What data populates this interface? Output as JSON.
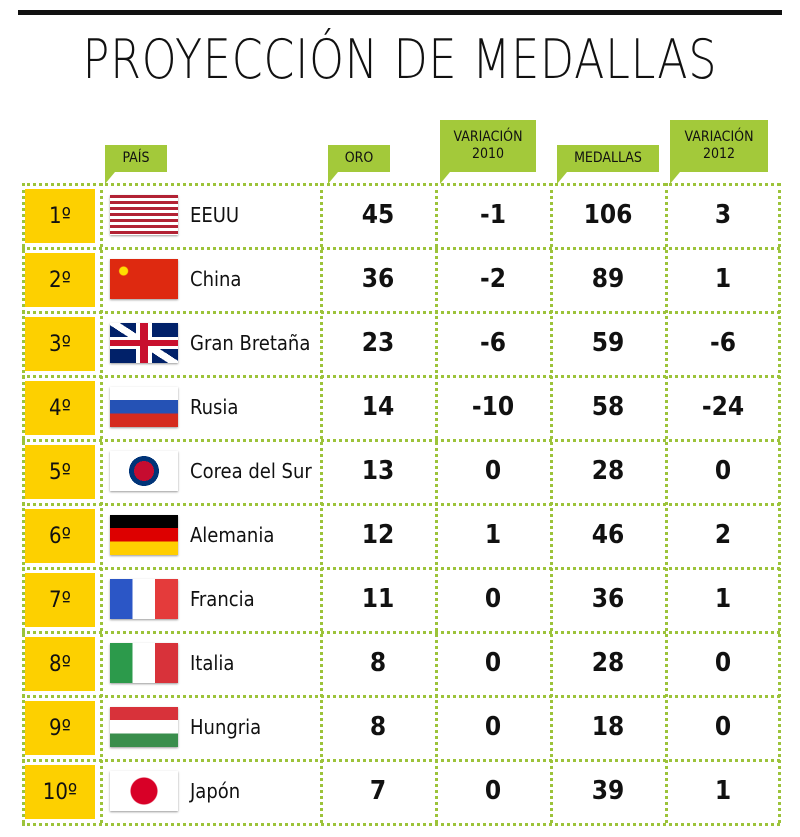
{
  "header": {
    "title": "PROYECCIÓN DE MEDALLAS"
  },
  "table": {
    "columns": [
      "PAÍS",
      "ORO",
      "VARIACIÓN 2010",
      "MEDALLAS",
      "VARIACIÓN 2012"
    ],
    "rows": [
      [
        "1º",
        "EEUU",
        45,
        -1,
        106,
        3
      ],
      [
        "2º",
        "China",
        36,
        -2,
        89,
        1
      ],
      [
        "3º",
        "Gran Bretaña",
        23,
        -6,
        59,
        -6
      ],
      [
        "4º",
        "Rusia",
        14,
        -10,
        58,
        -24
      ],
      [
        "5º",
        "Corea del Sur",
        13,
        0,
        28,
        0
      ],
      [
        "6º",
        "Alemania",
        12,
        1,
        46,
        2
      ],
      [
        "7º",
        "Francia",
        11,
        0,
        36,
        1
      ],
      [
        "8º",
        "Italia",
        8,
        0,
        28,
        0
      ],
      [
        "9º",
        "Hungria",
        8,
        0,
        18,
        0
      ],
      [
        "10º",
        "Japón",
        7,
        0,
        39,
        1
      ]
    ]
  }
}
